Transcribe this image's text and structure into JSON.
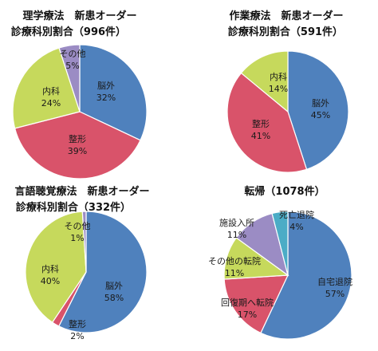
{
  "chart_data": [
    {
      "type": "pie",
      "title": "理学療法　新患オーダー",
      "subtitle": "診療科別割合（996件）",
      "slices": [
        {
          "label": "脳外",
          "value": 32,
          "value_text": "32%",
          "color": "#4f81bd"
        },
        {
          "label": "整形",
          "value": 39,
          "value_text": "39%",
          "color": "#d9536a"
        },
        {
          "label": "内科",
          "value": 24,
          "value_text": "24%",
          "color": "#c6d95c"
        },
        {
          "label": "その他",
          "value": 5,
          "value_text": "5%",
          "color": "#9b8cc4"
        }
      ]
    },
    {
      "type": "pie",
      "title": "作業療法　新患オーダー",
      "subtitle": "診療科別割合（591件）",
      "slices": [
        {
          "label": "脳外",
          "value": 45,
          "value_text": "45%",
          "color": "#4f81bd"
        },
        {
          "label": "整形",
          "value": 41,
          "value_text": "41%",
          "color": "#d9536a"
        },
        {
          "label": "内科",
          "value": 14,
          "value_text": "14%",
          "color": "#c6d95c"
        }
      ]
    },
    {
      "type": "pie",
      "title": "言語聴覚療法　新患オーダー",
      "subtitle": "診療科別割合（332件）",
      "slices": [
        {
          "label": "脳外",
          "value": 58,
          "value_text": "58%",
          "color": "#4f81bd"
        },
        {
          "label": "整形",
          "value": 2,
          "value_text": "2%",
          "color": "#d9536a"
        },
        {
          "label": "内科",
          "value": 40,
          "value_text": "40%",
          "color": "#c6d95c"
        },
        {
          "label": "その他",
          "value": 1,
          "value_text": "1%",
          "color": "#9b8cc4"
        }
      ]
    },
    {
      "type": "pie",
      "title": "転帰（1078件）",
      "subtitle": "",
      "slices": [
        {
          "label": "自宅退院",
          "value": 57,
          "value_text": "57%",
          "color": "#4f81bd"
        },
        {
          "label": "回復期へ転院",
          "value": 17,
          "value_text": "17%",
          "color": "#d9536a"
        },
        {
          "label": "その他の転院",
          "value": 11,
          "value_text": "11%",
          "color": "#c6d95c"
        },
        {
          "label": "施設入所",
          "value": 11,
          "value_text": "11%",
          "color": "#9b8cc4"
        },
        {
          "label": "死亡退院",
          "value": 4,
          "value_text": "4%",
          "color": "#4bacc6"
        }
      ]
    }
  ]
}
